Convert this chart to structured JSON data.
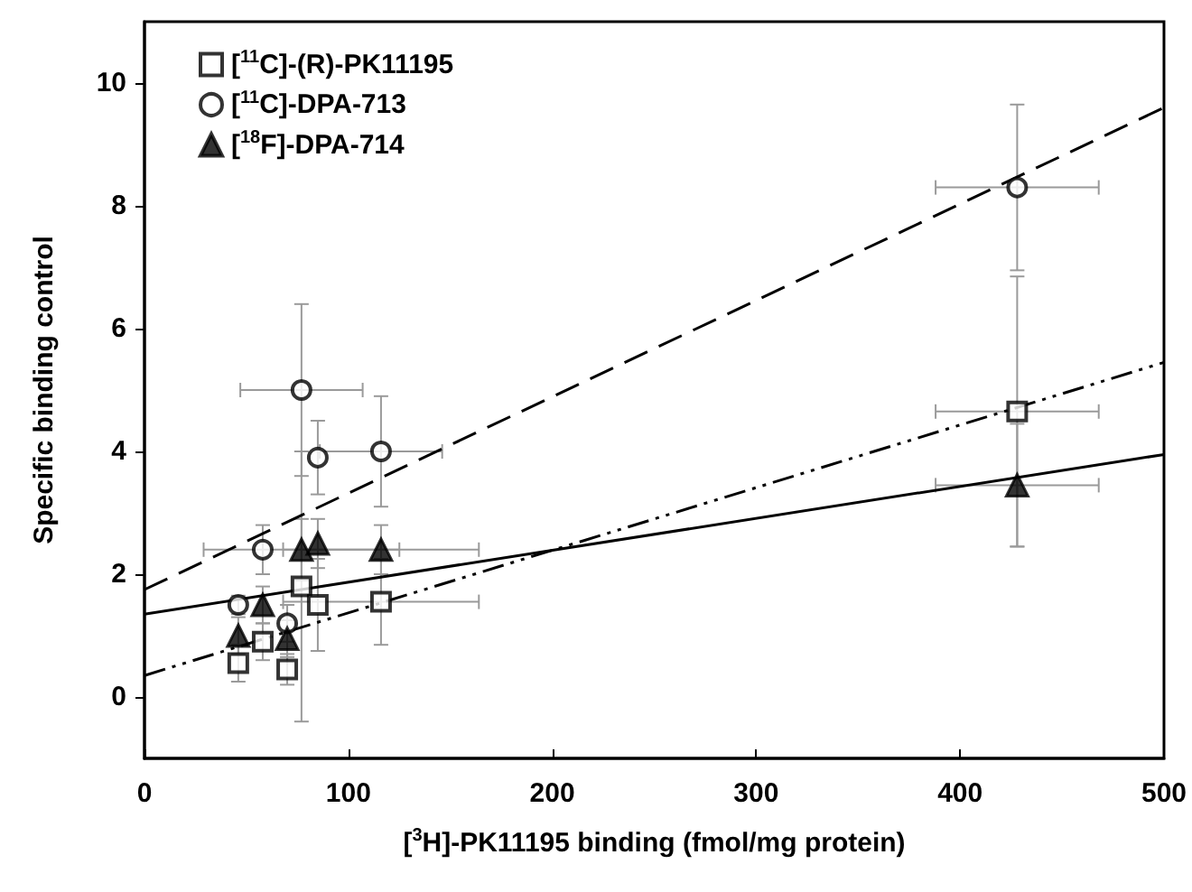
{
  "chart_data": {
    "type": "scatter",
    "xlabel": "[$^{3}$H]-PK11195 binding (fmol/mg protein)",
    "ylabel": "Specific binding control",
    "xlim": [
      0,
      500
    ],
    "xticks": [
      0,
      100,
      200,
      300,
      400,
      500
    ],
    "ylim": [
      -1,
      11
    ],
    "yticks": [
      0,
      2,
      4,
      6,
      8,
      10
    ],
    "legend": "top left",
    "grid": false,
    "series": [
      {
        "name": "[$^{11}$C]-(R)-PK11195",
        "type": "scatter",
        "marker": "square",
        "color": "#000000",
        "x": [
          46,
          58,
          70,
          77,
          85,
          116,
          428
        ],
        "values": [
          0.55,
          0.9,
          0.45,
          1.8,
          1.5,
          1.55,
          4.65
        ],
        "errors": [
          0.3,
          0.3,
          0.25,
          2.2,
          0.75,
          0.7,
          2.2
        ],
        "xerrors": [
          null,
          null,
          null,
          null,
          null,
          48,
          40
        ]
      },
      {
        "name": "[$^{11}$C]-DPA-713",
        "type": "scatter",
        "marker": "circle",
        "color": "#000000",
        "x": [
          46,
          58,
          70,
          77,
          85,
          116,
          428
        ],
        "values": [
          1.5,
          2.4,
          1.2,
          5.0,
          3.9,
          4.0,
          8.3
        ],
        "errors": [
          0.15,
          0.4,
          0.3,
          1.4,
          0.6,
          0.9,
          1.35
        ],
        "xerrors": [
          null,
          null,
          null,
          30,
          null,
          30,
          40
        ]
      },
      {
        "name": "[$^{18}$F]-DPA-714",
        "type": "scatter",
        "marker": "triangle",
        "color": "#000000",
        "x": [
          46,
          58,
          70,
          77,
          85,
          116,
          428
        ],
        "values": [
          1.0,
          1.5,
          0.95,
          2.4,
          2.5,
          2.4,
          3.45
        ],
        "errors": [
          0.3,
          0.3,
          0.3,
          0.5,
          0.4,
          0.4,
          1.0
        ],
        "xerrors": [
          null,
          null,
          null,
          48,
          null,
          48,
          40
        ]
      },
      {
        "type": "line",
        "line_style": "solid",
        "marker": "none",
        "color": "#000000",
        "x": [
          0,
          500
        ],
        "values": [
          1.35,
          3.95
        ]
      },
      {
        "type": "line",
        "line_style": "dashed",
        "marker": "none",
        "color": "#000000",
        "x": [
          0,
          500
        ],
        "values": [
          1.75,
          9.6
        ]
      },
      {
        "type": "line",
        "line_style": "dashdot",
        "marker": "none",
        "color": "#000000",
        "x": [
          0,
          500
        ],
        "values": [
          0.35,
          5.45
        ]
      }
    ]
  }
}
